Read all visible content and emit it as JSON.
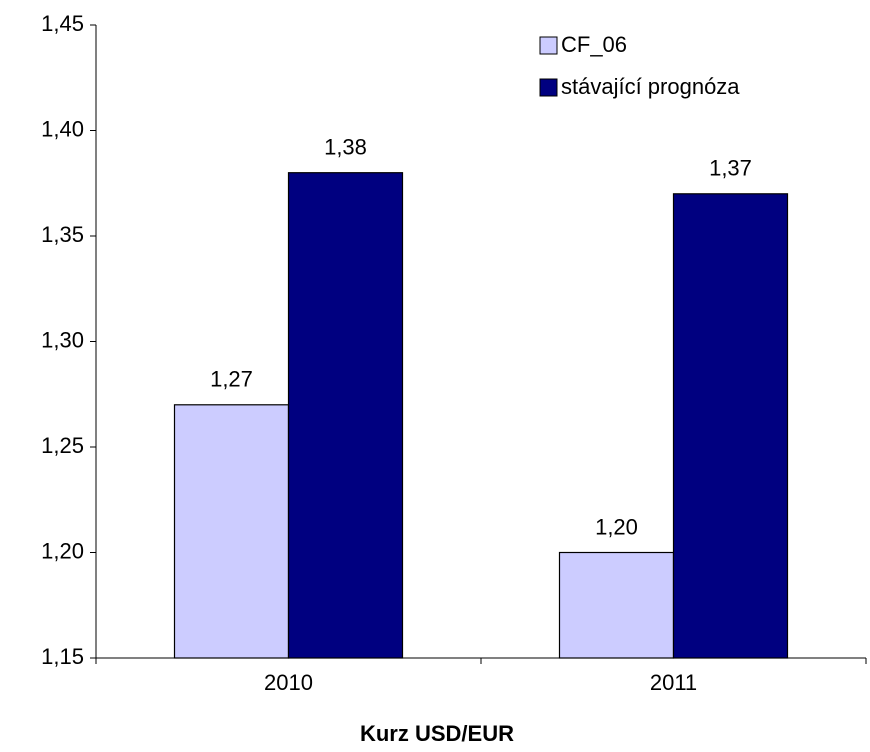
{
  "chart_data": {
    "type": "bar",
    "x_label": "Kurz USD/EUR",
    "categories": [
      "2010",
      "2011"
    ],
    "series": [
      {
        "name": "CF_06",
        "color": "#ccccff",
        "values": [
          1.27,
          1.2
        ],
        "value_labels": [
          "1,27",
          "1,20"
        ]
      },
      {
        "name": "stávající prognóza",
        "color": "#000080",
        "values": [
          1.38,
          1.37
        ],
        "value_labels": [
          "1,38",
          "1,37"
        ]
      }
    ],
    "ylim": [
      1.15,
      1.45
    ],
    "yticks": [
      {
        "value": 1.15,
        "label": "1,15"
      },
      {
        "value": 1.2,
        "label": "1,20"
      },
      {
        "value": 1.25,
        "label": "1,25"
      },
      {
        "value": 1.3,
        "label": "1,30"
      },
      {
        "value": 1.35,
        "label": "1,35"
      },
      {
        "value": 1.4,
        "label": "1,40"
      },
      {
        "value": 1.45,
        "label": "1,45"
      }
    ],
    "grid": false,
    "legend": "top-right"
  }
}
